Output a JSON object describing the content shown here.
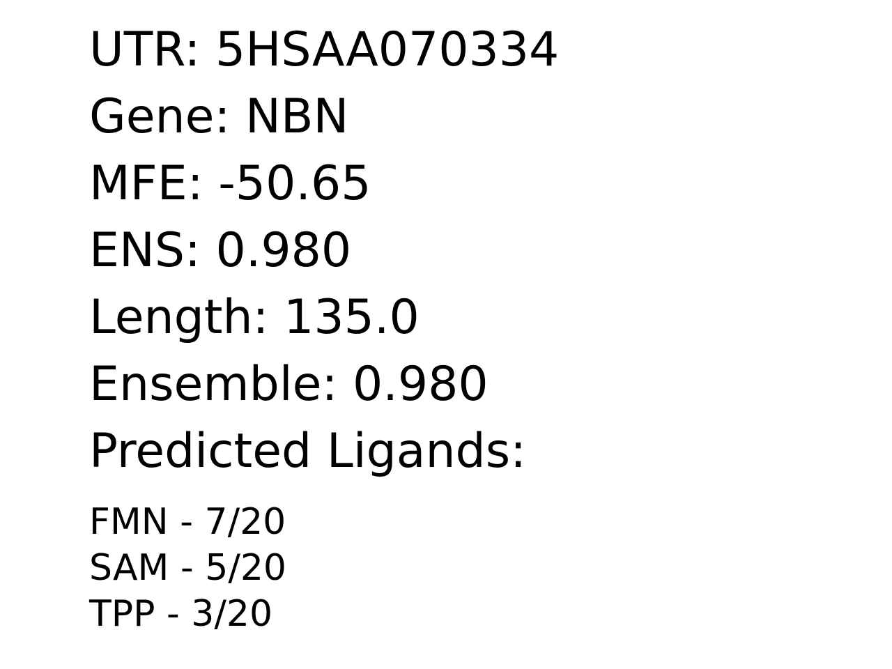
{
  "fields": {
    "utr": "UTR: 5HSAA070334",
    "gene": "Gene: NBN",
    "mfe": "MFE: -50.65",
    "ens": "ENS: 0.980",
    "length": "Length: 135.0",
    "ensemble": "Ensemble: 0.980"
  },
  "ligands": {
    "heading": "Predicted Ligands:",
    "items": [
      "FMN - 7/20",
      "SAM - 5/20",
      "TPP - 3/20"
    ]
  }
}
